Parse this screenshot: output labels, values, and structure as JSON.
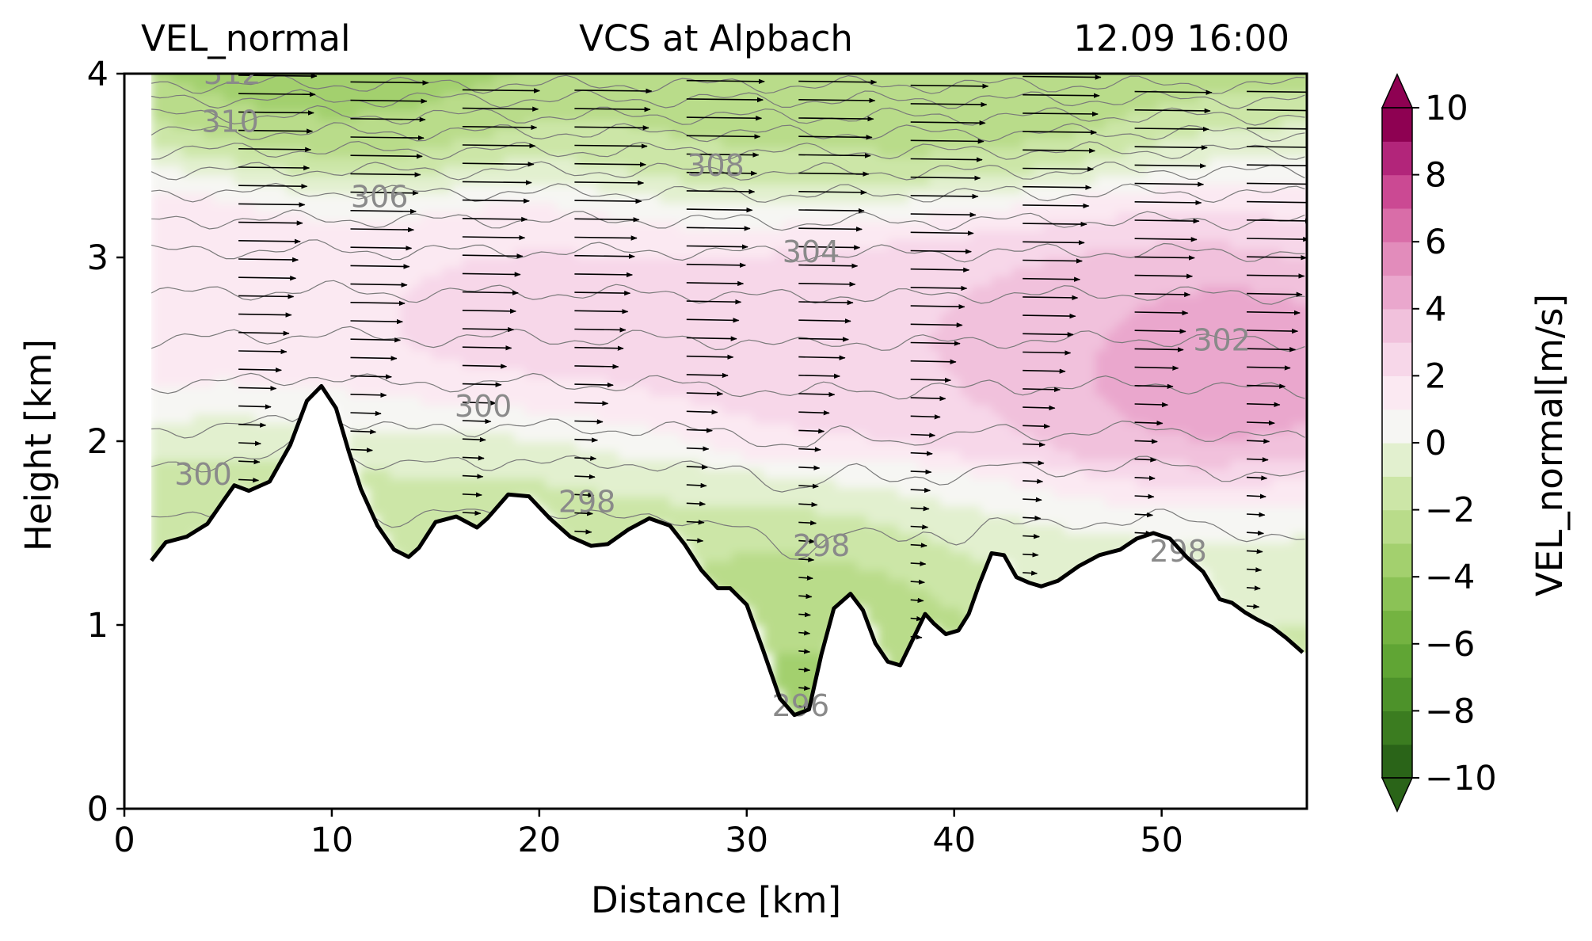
{
  "chart_data": {
    "type": "contour",
    "title_left": "VEL_normal",
    "title_center": "VCS at Alpbach",
    "title_right": "12.09 16:00",
    "xlabel": "Distance [km]",
    "ylabel": "Height [km]",
    "xlim": [
      0,
      57
    ],
    "ylim": [
      0,
      4
    ],
    "xticks": [
      "0",
      "10",
      "20",
      "30",
      "40",
      "50"
    ],
    "yticks": [
      "0",
      "1",
      "2",
      "3",
      "4"
    ],
    "grid": false,
    "terrain": {
      "x": [
        1.3,
        2.0,
        3.0,
        4.0,
        4.8,
        5.3,
        6.0,
        7.0,
        8.0,
        8.8,
        9.5,
        10.2,
        10.8,
        11.4,
        12.2,
        13.0,
        13.7,
        14.2,
        15.0,
        16.0,
        17.0,
        17.5,
        18.5,
        19.5,
        20.5,
        21.5,
        22.5,
        23.3,
        24.3,
        25.3,
        26.3,
        27.0,
        27.8,
        28.6,
        29.2,
        30.0,
        30.8,
        31.6,
        32.3,
        33.0,
        33.6,
        34.2,
        35.0,
        35.6,
        36.2,
        36.8,
        37.4,
        38.0,
        38.6,
        39.0,
        39.6,
        40.2,
        40.7,
        41.2,
        41.8,
        42.4,
        43.0,
        43.6,
        44.2,
        45.0,
        46.0,
        47.0,
        48.0,
        48.8,
        49.6,
        50.4,
        51.2,
        52.0,
        52.8,
        53.4,
        54.0,
        54.6,
        55.3,
        56.0,
        56.8
      ],
      "height": [
        1.35,
        1.45,
        1.48,
        1.55,
        1.68,
        1.76,
        1.73,
        1.78,
        1.98,
        2.22,
        2.3,
        2.18,
        1.95,
        1.74,
        1.54,
        1.41,
        1.37,
        1.42,
        1.56,
        1.59,
        1.53,
        1.58,
        1.71,
        1.7,
        1.58,
        1.48,
        1.43,
        1.44,
        1.52,
        1.58,
        1.54,
        1.44,
        1.3,
        1.2,
        1.2,
        1.11,
        0.86,
        0.6,
        0.51,
        0.54,
        0.84,
        1.09,
        1.17,
        1.08,
        0.9,
        0.8,
        0.78,
        0.92,
        1.06,
        1.01,
        0.95,
        0.97,
        1.06,
        1.22,
        1.39,
        1.38,
        1.26,
        1.23,
        1.21,
        1.24,
        1.32,
        1.38,
        1.41,
        1.47,
        1.5,
        1.47,
        1.37,
        1.29,
        1.14,
        1.12,
        1.07,
        1.03,
        0.99,
        0.93,
        0.85
      ]
    },
    "wind_profiles_x": [
      5.5,
      10.9,
      16.3,
      21.7,
      27.1,
      32.5,
      37.9,
      43.3,
      48.7,
      54.1
    ],
    "wind": {
      "units": "m/s",
      "speed_at_height": {
        "heights": [
          1.0,
          2.0,
          2.5,
          3.0,
          3.5,
          4.0
        ],
        "speed": [
          1.5,
          3.0,
          6.5,
          8.0,
          9.5,
          10.5
        ]
      }
    },
    "potential_temperature_labels": [
      {
        "text": "312",
        "x": 5.2,
        "y": 4.0
      },
      {
        "text": "310",
        "x": 5.1,
        "y": 3.74
      },
      {
        "text": "306",
        "x": 12.3,
        "y": 3.33
      },
      {
        "text": "308",
        "x": 28.5,
        "y": 3.5
      },
      {
        "text": "304",
        "x": 33.1,
        "y": 3.03
      },
      {
        "text": "302",
        "x": 52.9,
        "y": 2.55
      },
      {
        "text": "300",
        "x": 17.3,
        "y": 2.19
      },
      {
        "text": "300",
        "x": 3.8,
        "y": 1.82
      },
      {
        "text": "298",
        "x": 22.3,
        "y": 1.67
      },
      {
        "text": "298",
        "x": 33.6,
        "y": 1.43
      },
      {
        "text": "298",
        "x": 50.8,
        "y": 1.4
      },
      {
        "text": "296",
        "x": 32.6,
        "y": 0.56
      }
    ],
    "isentropes": [
      {
        "value": 298,
        "base": 1.55
      },
      {
        "value": 298,
        "base": 1.85
      },
      {
        "value": 300,
        "base": 2.05
      },
      {
        "value": 300,
        "base": 2.3
      },
      {
        "value": 302,
        "base": 2.55
      },
      {
        "value": 302,
        "base": 2.8
      },
      {
        "value": 304,
        "base": 3.03
      },
      {
        "value": 304,
        "base": 3.2
      },
      {
        "value": 306,
        "base": 3.35
      },
      {
        "value": 306,
        "base": 3.47
      },
      {
        "value": 308,
        "base": 3.58
      },
      {
        "value": 308,
        "base": 3.68
      },
      {
        "value": 310,
        "base": 3.77
      },
      {
        "value": 310,
        "base": 3.86
      },
      {
        "value": 312,
        "base": 3.94
      }
    ],
    "vel_normal_field": {
      "units": "m/s",
      "description_blobs": [
        {
          "x": 33,
          "y": 2.6,
          "value": 3.2
        },
        {
          "x": 20,
          "y": 2.6,
          "value": 2.8
        },
        {
          "x": 51,
          "y": 2.5,
          "value": 4.8
        },
        {
          "x": 53,
          "y": 2.4,
          "value": 5.6
        },
        {
          "x": 44,
          "y": 2.6,
          "value": 3.5
        },
        {
          "x": 3,
          "y": 2.9,
          "value": 1.8
        },
        {
          "x": 32,
          "y": 0.7,
          "value": -4.0
        },
        {
          "x": 30,
          "y": 1.1,
          "value": -2.6
        },
        {
          "x": 18,
          "y": 1.7,
          "value": -1.6
        },
        {
          "x": 4,
          "y": 1.6,
          "value": -2.0
        },
        {
          "x": 10,
          "y": 3.95,
          "value": -3.8
        },
        {
          "x": 40,
          "y": 3.95,
          "value": -3.2
        },
        {
          "x": 30,
          "y": 3.8,
          "value": -2.6
        }
      ]
    },
    "colorbar": {
      "label": "VEL_normal[m/s]",
      "ticks": [
        "10",
        "8",
        "6",
        "4",
        "2",
        "0",
        "−2",
        "−4",
        "−6",
        "−8",
        "−10"
      ],
      "min": -10,
      "max": 10,
      "levels": 20,
      "colors": [
        "#2a6418",
        "#3b7c20",
        "#4d922a",
        "#60a534",
        "#74b341",
        "#8bc256",
        "#a3d06e",
        "#b9dc8a",
        "#cce6a7",
        "#e2f0cf",
        "#f6f6f3",
        "#fbe9f2",
        "#f7d7e9",
        "#f1c1dc",
        "#eaa7cd",
        "#e28cbb",
        "#d96da8",
        "#cb4993",
        "#b2257a",
        "#8e0152"
      ]
    }
  }
}
